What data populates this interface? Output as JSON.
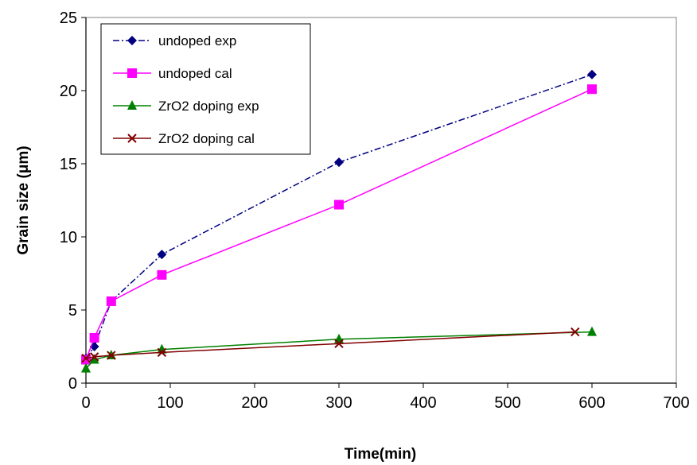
{
  "chart_data": {
    "type": "line",
    "title": "",
    "xlabel": "Time(min)",
    "ylabel": "Grain size (μm)",
    "xlim": [
      0,
      700
    ],
    "ylim": [
      0,
      25
    ],
    "xticks": [
      "0",
      "100",
      "200",
      "300",
      "400",
      "500",
      "600",
      "700"
    ],
    "yticks": [
      "0",
      "5",
      "10",
      "15",
      "20",
      "25"
    ],
    "grid": false,
    "legend_position": "top-left",
    "series": [
      {
        "name": "undoped exp",
        "color": "#000080",
        "marker": "diamond",
        "line_style": "dash-dot",
        "x": [
          0,
          10,
          30,
          90,
          300,
          600
        ],
        "y": [
          1.7,
          2.5,
          5.6,
          8.8,
          15.1,
          21.1
        ]
      },
      {
        "name": "undoped cal",
        "color": "#FF00FF",
        "marker": "square",
        "line_style": "solid",
        "x": [
          0,
          10,
          30,
          90,
          300,
          600
        ],
        "y": [
          1.6,
          3.1,
          5.6,
          7.4,
          12.2,
          20.1
        ]
      },
      {
        "name": "ZrO2 doping exp",
        "color": "#008000",
        "marker": "triangle",
        "line_style": "solid",
        "x": [
          0,
          10,
          30,
          90,
          300,
          600
        ],
        "y": [
          1.0,
          1.6,
          1.9,
          2.3,
          3.0,
          3.5
        ]
      },
      {
        "name": "ZrO2 doping cal",
        "color": "#800000",
        "marker": "x",
        "line_style": "solid",
        "x": [
          0,
          10,
          30,
          90,
          300,
          580
        ],
        "y": [
          1.7,
          1.8,
          1.9,
          2.1,
          2.7,
          3.5
        ]
      }
    ]
  }
}
